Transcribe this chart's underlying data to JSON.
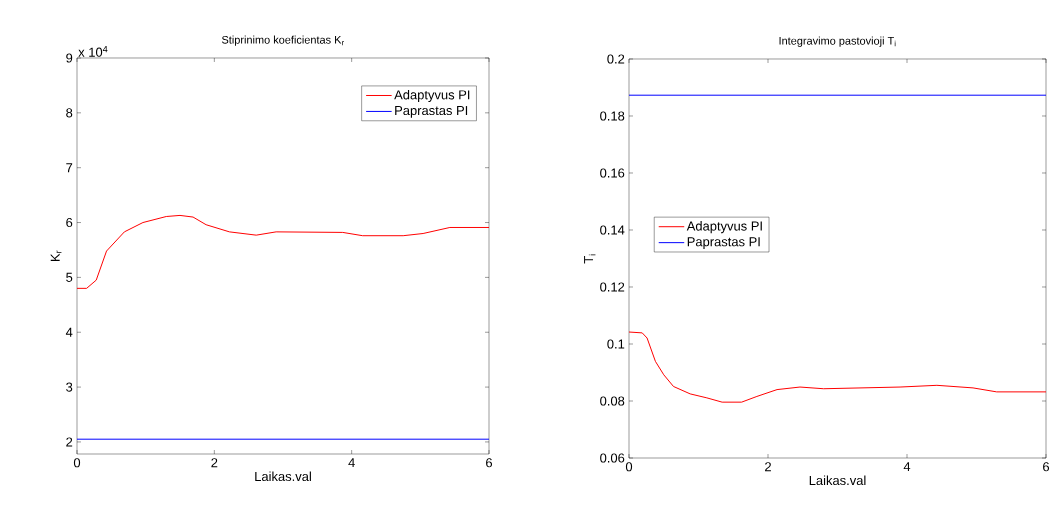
{
  "chart_data": [
    {
      "type": "line",
      "title": "Stiprinimo koeficientas K$_{r}$",
      "xlabel": "Laikas.val",
      "ylabel": "K$_{r}$",
      "annotations": [
        "x 10$^{4}$"
      ],
      "xlim": [
        0,
        6
      ],
      "xticks": [
        0,
        2,
        4,
        6
      ],
      "ylim": [
        1.78,
        9
      ],
      "yticks": [
        2,
        3,
        4,
        5,
        6,
        7,
        8,
        9
      ],
      "legend": "top right",
      "series": [
        {
          "name": "Adaptyvus PI",
          "color": "#ff0000",
          "x": [
            0,
            0.14,
            0.28,
            0.43,
            0.69,
            0.96,
            1.3,
            1.5,
            1.69,
            1.88,
            2.22,
            2.61,
            2.9,
            3.87,
            4.16,
            4.75,
            5.04,
            5.43,
            6
          ],
          "values": [
            4.8,
            4.8,
            4.95,
            5.48,
            5.83,
            6.0,
            6.11,
            6.13,
            6.1,
            5.96,
            5.83,
            5.77,
            5.83,
            5.82,
            5.76,
            5.76,
            5.8,
            5.91,
            5.91
          ]
        },
        {
          "name": "Paprastas PI",
          "color": "#0000ff",
          "x": [
            0,
            6
          ],
          "values": [
            2.05,
            2.05
          ]
        }
      ]
    },
    {
      "type": "line",
      "title": "Integravimo pastovioji T$_{i}$",
      "xlabel": "Laikas.val",
      "ylabel": "T$_{i}$",
      "xlim": [
        0,
        6
      ],
      "xticks": [
        0,
        2,
        4,
        6
      ],
      "ylim": [
        0.06,
        0.2
      ],
      "yticks": [
        0.06,
        0.08,
        0.1,
        0.12,
        0.14,
        0.16,
        0.18,
        0.2
      ],
      "legend": "left",
      "series": [
        {
          "name": "Adaptyvus PI",
          "color": "#ff0000",
          "x": [
            0,
            0.19,
            0.26,
            0.38,
            0.5,
            0.64,
            0.88,
            1.12,
            1.34,
            1.62,
            1.84,
            2.13,
            2.46,
            2.8,
            3.9,
            4.43,
            4.95,
            5.29,
            6
          ],
          "values": [
            0.1042,
            0.1039,
            0.1021,
            0.0939,
            0.0892,
            0.0851,
            0.0825,
            0.0811,
            0.0796,
            0.0796,
            0.0816,
            0.084,
            0.0849,
            0.0843,
            0.0849,
            0.0855,
            0.0846,
            0.0832,
            0.0832
          ]
        },
        {
          "name": "Paprastas PI",
          "color": "#0000ff",
          "x": [
            0,
            6
          ],
          "values": [
            0.1873,
            0.1873
          ]
        }
      ]
    }
  ]
}
